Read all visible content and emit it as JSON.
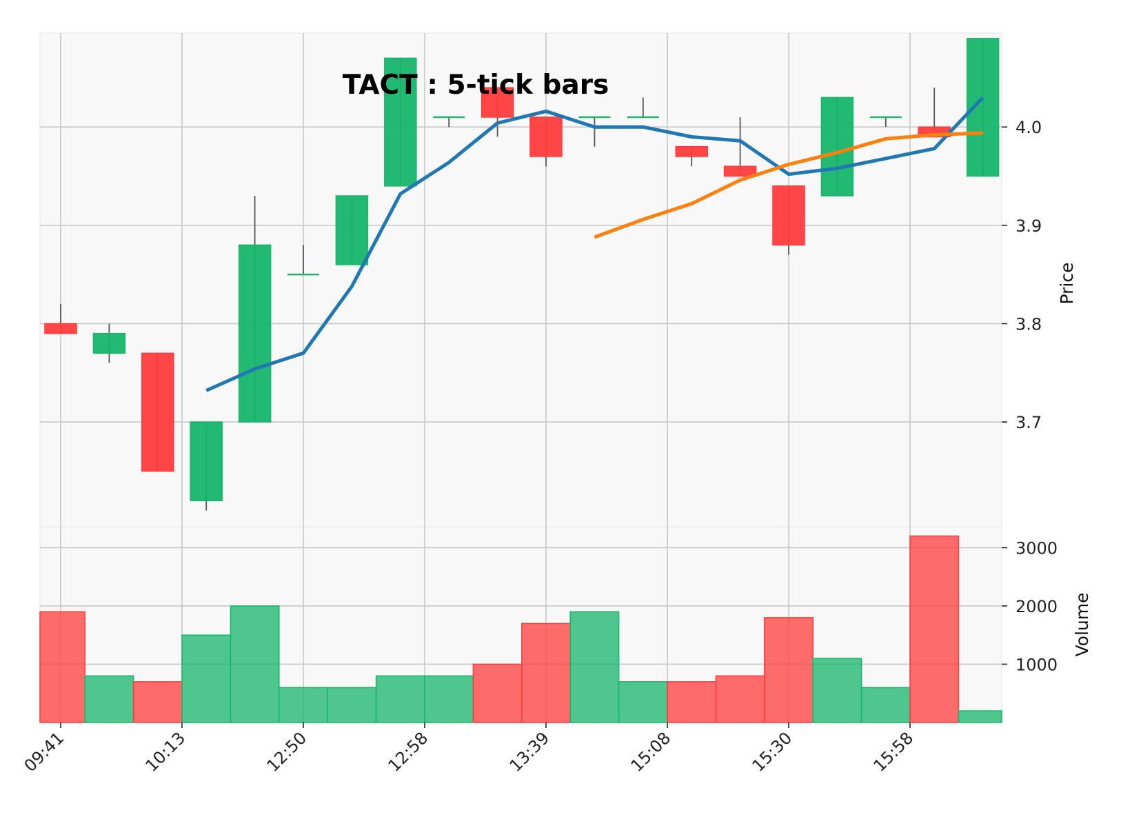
{
  "chart_data": {
    "type": "candlestick",
    "title": "TACT : 5-tick bars",
    "x_tick_labels": [
      "09:41",
      "10:13",
      "12:50",
      "12:58",
      "13:39",
      "15:08",
      "15:30",
      "15:58"
    ],
    "x_tick_positions": [
      0,
      2.5,
      5,
      7.5,
      10,
      12.5,
      15,
      17.5
    ],
    "candles": [
      {
        "open": 3.8,
        "high": 3.82,
        "low": 3.79,
        "close": 3.79,
        "volume": 1900
      },
      {
        "open": 3.77,
        "high": 3.8,
        "low": 3.76,
        "close": 3.79,
        "volume": 800
      },
      {
        "open": 3.77,
        "high": 3.77,
        "low": 3.65,
        "close": 3.65,
        "volume": 700
      },
      {
        "open": 3.62,
        "high": 3.7,
        "low": 3.61,
        "close": 3.7,
        "volume": 1500
      },
      {
        "open": 3.7,
        "high": 3.93,
        "low": 3.7,
        "close": 3.88,
        "volume": 2000
      },
      {
        "open": 3.85,
        "high": 3.88,
        "low": 3.85,
        "close": 3.85,
        "volume": 600
      },
      {
        "open": 3.86,
        "high": 3.93,
        "low": 3.86,
        "close": 3.93,
        "volume": 600
      },
      {
        "open": 3.94,
        "high": 4.07,
        "low": 3.94,
        "close": 4.07,
        "volume": 800
      },
      {
        "open": 4.01,
        "high": 4.01,
        "low": 4.0,
        "close": 4.01,
        "volume": 800
      },
      {
        "open": 4.04,
        "high": 4.04,
        "low": 3.99,
        "close": 4.01,
        "volume": 1000
      },
      {
        "open": 4.01,
        "high": 4.01,
        "low": 3.96,
        "close": 3.97,
        "volume": 1700
      },
      {
        "open": 4.01,
        "high": 4.01,
        "low": 3.98,
        "close": 4.01,
        "volume": 1900
      },
      {
        "open": 4.01,
        "high": 4.03,
        "low": 4.01,
        "close": 4.01,
        "volume": 700
      },
      {
        "open": 3.98,
        "high": 3.98,
        "low": 3.96,
        "close": 3.97,
        "volume": 700
      },
      {
        "open": 3.96,
        "high": 4.01,
        "low": 3.95,
        "close": 3.95,
        "volume": 800
      },
      {
        "open": 3.94,
        "high": 3.94,
        "low": 3.87,
        "close": 3.88,
        "volume": 1800
      },
      {
        "open": 3.93,
        "high": 4.03,
        "low": 3.93,
        "close": 4.03,
        "volume": 1100
      },
      {
        "open": 4.01,
        "high": 4.01,
        "low": 4.0,
        "close": 4.01,
        "volume": 600
      },
      {
        "open": 4.0,
        "high": 4.04,
        "low": 3.99,
        "close": 3.99,
        "volume": 3200
      },
      {
        "open": 3.95,
        "high": 4.09,
        "low": 3.95,
        "close": 4.09,
        "volume": 200
      }
    ],
    "moving_averages": [
      {
        "color": "#1f77b4",
        "values": [
          null,
          null,
          null,
          3.732,
          3.754,
          3.77,
          3.838,
          3.932,
          3.964,
          4.004,
          4.016,
          4.0,
          4.0,
          3.99,
          3.986,
          3.952,
          3.958,
          3.968,
          3.978,
          4.03
        ]
      },
      {
        "color": "#ff7f0e",
        "values": [
          null,
          null,
          null,
          null,
          null,
          null,
          null,
          null,
          null,
          null,
          null,
          3.888,
          3.906,
          3.922,
          3.946,
          3.962,
          3.974,
          3.988,
          3.992,
          3.994
        ]
      }
    ],
    "price_ylabel": "Price",
    "volume_ylabel": "Volume",
    "price_yticks": [
      3.7,
      3.8,
      3.9,
      4.0
    ],
    "price_ylim": [
      3.5935,
      4.0955
    ],
    "volume_yticks": [
      1000,
      2000,
      3000
    ],
    "volume_ylim": [
      0,
      3360
    ],
    "up_color": "#16b56a",
    "down_color": "#ff3c3c",
    "grid": true
  }
}
